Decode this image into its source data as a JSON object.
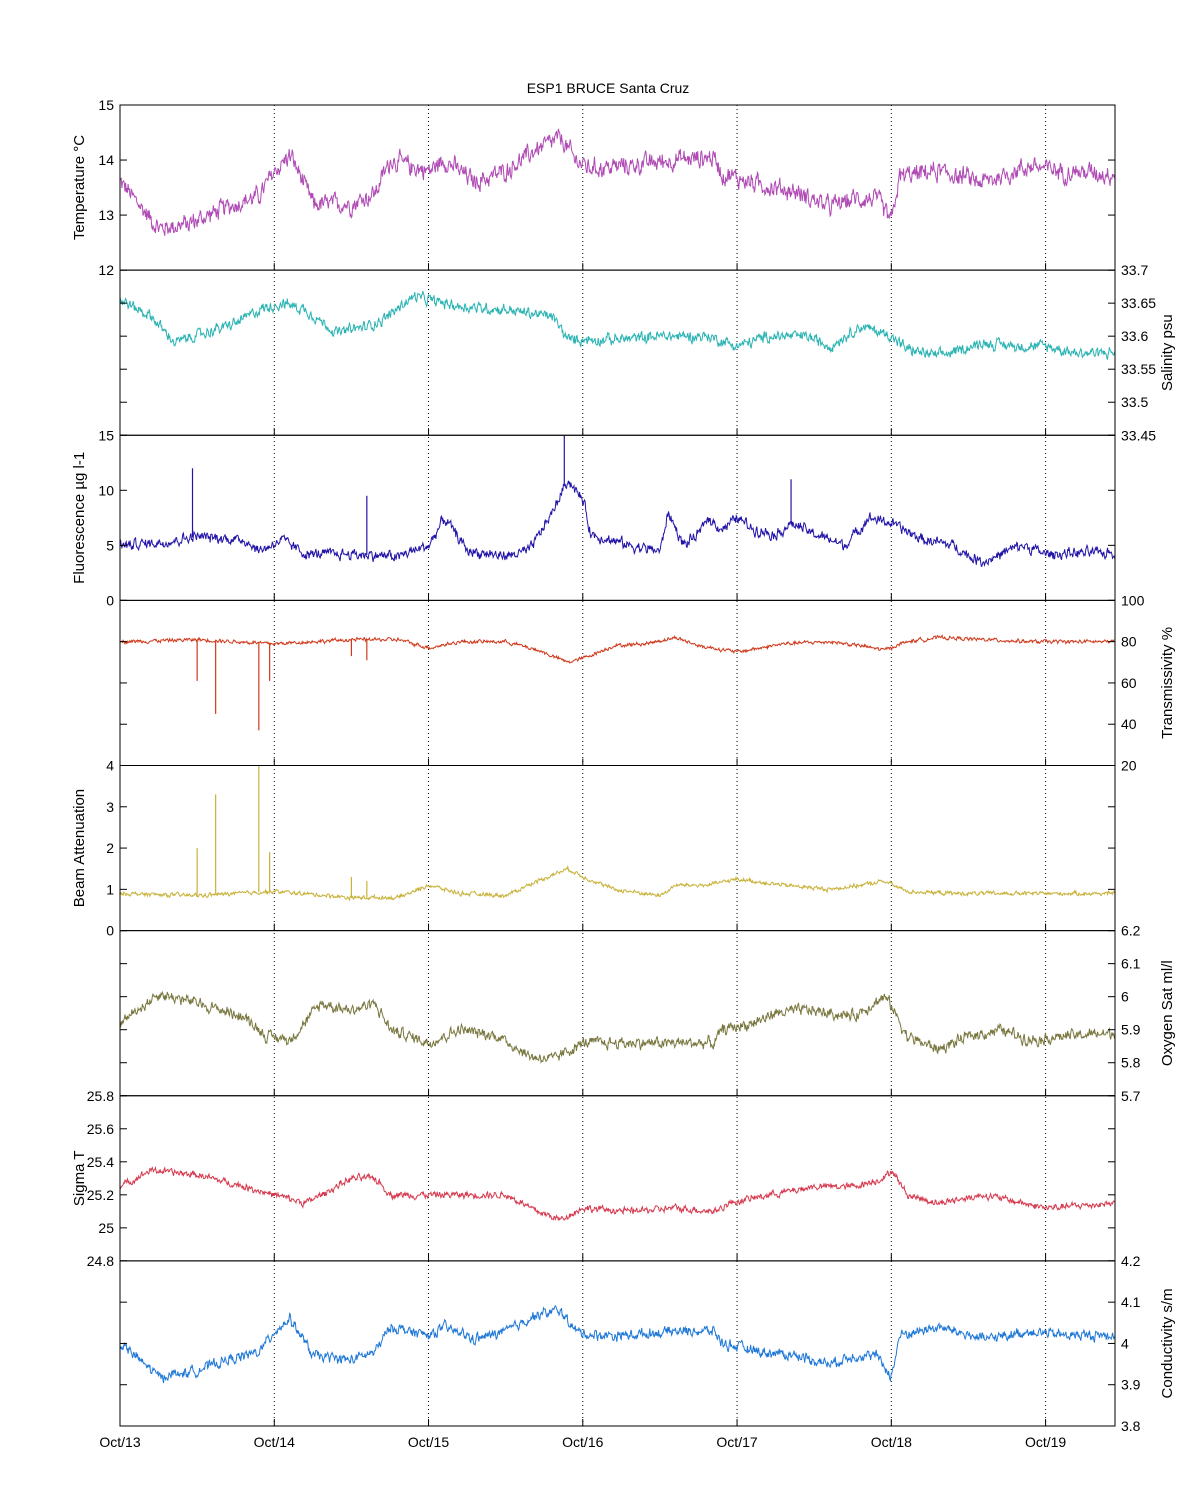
{
  "chart_data": {
    "type": "line",
    "title": "ESP1 BRUCE Santa Cruz",
    "x_ticks": [
      "Oct/13",
      "Oct/14",
      "Oct/15",
      "Oct/16",
      "Oct/17",
      "Oct/18",
      "Oct/19"
    ],
    "xlim_days": [
      0,
      6.45
    ],
    "panels": [
      {
        "id": "temperature",
        "ylabel": "Temperature °C",
        "axis_side": "left",
        "color": "#b04bb5",
        "ylim": [
          12,
          15
        ],
        "tick_labels": [
          "12",
          "13",
          "14",
          "15"
        ],
        "minor_ticks": [],
        "amp": 0.25,
        "spikes": [],
        "trend": [
          [
            0,
            13.6
          ],
          [
            0.25,
            12.75
          ],
          [
            0.45,
            12.85
          ],
          [
            0.7,
            13.15
          ],
          [
            0.9,
            13.35
          ],
          [
            1.0,
            13.8
          ],
          [
            1.1,
            14.1
          ],
          [
            1.25,
            13.2
          ],
          [
            1.5,
            13.2
          ],
          [
            1.65,
            13.4
          ],
          [
            1.75,
            14.0
          ],
          [
            2.0,
            13.8
          ],
          [
            2.1,
            14.0
          ],
          [
            2.3,
            13.6
          ],
          [
            2.5,
            13.8
          ],
          [
            2.7,
            14.2
          ],
          [
            2.85,
            14.4
          ],
          [
            2.95,
            14.0
          ],
          [
            3.05,
            13.85
          ],
          [
            3.3,
            13.9
          ],
          [
            3.6,
            14.0
          ],
          [
            3.85,
            14.05
          ],
          [
            3.9,
            13.75
          ],
          [
            4.15,
            13.55
          ],
          [
            4.4,
            13.4
          ],
          [
            4.6,
            13.15
          ],
          [
            4.75,
            13.3
          ],
          [
            4.9,
            13.3
          ],
          [
            5.0,
            12.9
          ],
          [
            5.05,
            13.7
          ],
          [
            5.3,
            13.8
          ],
          [
            5.6,
            13.6
          ],
          [
            5.9,
            13.9
          ],
          [
            6.1,
            13.8
          ],
          [
            6.45,
            13.75
          ]
        ]
      },
      {
        "id": "salinity",
        "ylabel": "Salinity psu",
        "axis_side": "right",
        "color": "#2ab3b3",
        "ylim": [
          33.45,
          33.7
        ],
        "tick_labels": [
          "33.45",
          "33.5",
          "33.55",
          "33.6",
          "33.65",
          "33.7"
        ],
        "minor_ticks": [],
        "amp": 0.012,
        "spikes": [],
        "trend": [
          [
            0,
            33.655
          ],
          [
            0.2,
            33.63
          ],
          [
            0.35,
            33.59
          ],
          [
            0.55,
            33.605
          ],
          [
            0.75,
            33.62
          ],
          [
            0.9,
            33.64
          ],
          [
            1.05,
            33.65
          ],
          [
            1.2,
            33.64
          ],
          [
            1.4,
            33.605
          ],
          [
            1.6,
            33.615
          ],
          [
            1.7,
            33.625
          ],
          [
            1.9,
            33.66
          ],
          [
            2.0,
            33.655
          ],
          [
            2.2,
            33.645
          ],
          [
            2.5,
            33.64
          ],
          [
            2.8,
            33.63
          ],
          [
            2.9,
            33.595
          ],
          [
            3.2,
            33.595
          ],
          [
            3.5,
            33.6
          ],
          [
            3.8,
            33.6
          ],
          [
            4.0,
            33.585
          ],
          [
            4.2,
            33.6
          ],
          [
            4.45,
            33.6
          ],
          [
            4.6,
            33.585
          ],
          [
            4.8,
            33.615
          ],
          [
            5.0,
            33.6
          ],
          [
            5.1,
            33.58
          ],
          [
            5.3,
            33.57
          ],
          [
            5.6,
            33.59
          ],
          [
            5.8,
            33.585
          ],
          [
            6.0,
            33.585
          ],
          [
            6.2,
            33.575
          ],
          [
            6.45,
            33.575
          ]
        ]
      },
      {
        "id": "fluorescence",
        "ylabel": "Fluorescence µg l-1",
        "axis_side": "left",
        "color": "#2214a8",
        "ylim": [
          0,
          15
        ],
        "tick_labels": [
          "0",
          "5",
          "10",
          "15"
        ],
        "minor_ticks": [],
        "amp": 0.7,
        "spikes": [
          [
            0.47,
            12
          ],
          [
            1.6,
            9.5
          ],
          [
            2.88,
            15
          ],
          [
            4.35,
            11
          ]
        ],
        "trend": [
          [
            0,
            5.0
          ],
          [
            0.3,
            5.3
          ],
          [
            0.5,
            5.8
          ],
          [
            0.8,
            5.5
          ],
          [
            0.9,
            4.5
          ],
          [
            1.05,
            5.5
          ],
          [
            1.2,
            4.2
          ],
          [
            1.5,
            4.2
          ],
          [
            1.8,
            4.0
          ],
          [
            2.0,
            5.0
          ],
          [
            2.1,
            7.5
          ],
          [
            2.25,
            4.5
          ],
          [
            2.5,
            4.0
          ],
          [
            2.65,
            4.5
          ],
          [
            2.8,
            8.0
          ],
          [
            2.9,
            11.0
          ],
          [
            3.0,
            9.0
          ],
          [
            3.05,
            6.0
          ],
          [
            3.3,
            5.0
          ],
          [
            3.5,
            4.5
          ],
          [
            3.55,
            8.0
          ],
          [
            3.65,
            5.0
          ],
          [
            3.75,
            6.0
          ],
          [
            3.8,
            7.5
          ],
          [
            3.9,
            6.5
          ],
          [
            4.0,
            7.5
          ],
          [
            4.1,
            6.5
          ],
          [
            4.25,
            6.0
          ],
          [
            4.35,
            7.0
          ],
          [
            4.5,
            6.0
          ],
          [
            4.7,
            5.0
          ],
          [
            4.85,
            7.5
          ],
          [
            5.0,
            7.0
          ],
          [
            5.2,
            5.5
          ],
          [
            5.4,
            5.0
          ],
          [
            5.5,
            4.0
          ],
          [
            5.6,
            3.5
          ],
          [
            5.75,
            4.5
          ],
          [
            5.85,
            5.0
          ],
          [
            6.0,
            4.2
          ],
          [
            6.2,
            4.3
          ],
          [
            6.45,
            4.3
          ]
        ]
      },
      {
        "id": "transmissivity",
        "ylabel": "Transmissivity %",
        "axis_side": "right",
        "color": "#d0391c",
        "ylim": [
          20,
          100
        ],
        "tick_labels": [
          "20",
          "40",
          "60",
          "80",
          "100"
        ],
        "minor_ticks": [],
        "amp": 1.3,
        "spikes": [
          [
            0.5,
            61
          ],
          [
            0.62,
            45
          ],
          [
            0.9,
            37
          ],
          [
            0.97,
            61
          ],
          [
            1.5,
            73
          ],
          [
            1.6,
            71
          ]
        ],
        "trend": [
          [
            0,
            80
          ],
          [
            0.5,
            81
          ],
          [
            1.0,
            79
          ],
          [
            1.5,
            81
          ],
          [
            1.8,
            81
          ],
          [
            2.0,
            77
          ],
          [
            2.2,
            80
          ],
          [
            2.5,
            80
          ],
          [
            2.7,
            76
          ],
          [
            2.9,
            70
          ],
          [
            3.0,
            72
          ],
          [
            3.2,
            78
          ],
          [
            3.4,
            79
          ],
          [
            3.6,
            82
          ],
          [
            3.75,
            78
          ],
          [
            4.0,
            75
          ],
          [
            4.3,
            79
          ],
          [
            4.6,
            80
          ],
          [
            4.8,
            78
          ],
          [
            4.95,
            76
          ],
          [
            5.1,
            80
          ],
          [
            5.3,
            82
          ],
          [
            5.6,
            81
          ],
          [
            5.9,
            80
          ],
          [
            6.45,
            80
          ]
        ]
      },
      {
        "id": "beam-attenuation",
        "ylabel": "Beam Attenuation",
        "axis_side": "left",
        "color": "#c8b23a",
        "ylim": [
          0,
          4
        ],
        "tick_labels": [
          "0",
          "1",
          "2",
          "3",
          "4"
        ],
        "minor_ticks": [],
        "amp": 0.07,
        "spikes": [
          [
            0.5,
            2.0
          ],
          [
            0.62,
            3.3
          ],
          [
            0.9,
            4.0
          ],
          [
            0.97,
            1.9
          ],
          [
            1.5,
            1.3
          ],
          [
            1.6,
            1.2
          ]
        ],
        "trend": [
          [
            0,
            0.9
          ],
          [
            0.5,
            0.85
          ],
          [
            1.0,
            0.95
          ],
          [
            1.5,
            0.8
          ],
          [
            1.8,
            0.8
          ],
          [
            2.0,
            1.1
          ],
          [
            2.2,
            0.9
          ],
          [
            2.5,
            0.85
          ],
          [
            2.7,
            1.2
          ],
          [
            2.9,
            1.5
          ],
          [
            3.0,
            1.3
          ],
          [
            3.2,
            1.0
          ],
          [
            3.5,
            0.85
          ],
          [
            3.6,
            1.1
          ],
          [
            3.8,
            1.1
          ],
          [
            4.0,
            1.25
          ],
          [
            4.3,
            1.1
          ],
          [
            4.6,
            1.0
          ],
          [
            4.8,
            1.1
          ],
          [
            4.95,
            1.2
          ],
          [
            5.1,
            0.95
          ],
          [
            5.4,
            0.9
          ],
          [
            5.7,
            0.9
          ],
          [
            6.0,
            0.9
          ],
          [
            6.45,
            0.9
          ]
        ]
      },
      {
        "id": "oxygen-sat",
        "ylabel": "Oxygen Sat ml/l",
        "axis_side": "right",
        "color": "#7a7840",
        "ylim": [
          5.7,
          6.2
        ],
        "tick_labels": [
          "5.7",
          "5.8",
          "5.9",
          "6",
          "6.1",
          "6.2"
        ],
        "minor_ticks": [],
        "amp": 0.025,
        "spikes": [],
        "trend": [
          [
            0,
            5.92
          ],
          [
            0.25,
            6.01
          ],
          [
            0.5,
            5.98
          ],
          [
            0.8,
            5.94
          ],
          [
            0.95,
            5.88
          ],
          [
            1.1,
            5.87
          ],
          [
            1.3,
            5.98
          ],
          [
            1.5,
            5.96
          ],
          [
            1.65,
            5.98
          ],
          [
            1.75,
            5.9
          ],
          [
            2.0,
            5.86
          ],
          [
            2.2,
            5.9
          ],
          [
            2.45,
            5.88
          ],
          [
            2.65,
            5.82
          ],
          [
            2.8,
            5.81
          ],
          [
            3.0,
            5.86
          ],
          [
            3.3,
            5.86
          ],
          [
            3.6,
            5.86
          ],
          [
            3.85,
            5.86
          ],
          [
            3.9,
            5.9
          ],
          [
            4.1,
            5.92
          ],
          [
            4.25,
            5.95
          ],
          [
            4.45,
            5.96
          ],
          [
            4.6,
            5.95
          ],
          [
            4.75,
            5.94
          ],
          [
            4.95,
            6.0
          ],
          [
            5.0,
            5.97
          ],
          [
            5.1,
            5.88
          ],
          [
            5.3,
            5.84
          ],
          [
            5.5,
            5.88
          ],
          [
            5.7,
            5.9
          ],
          [
            5.9,
            5.87
          ],
          [
            6.1,
            5.88
          ],
          [
            6.45,
            5.89
          ]
        ]
      },
      {
        "id": "sigma-t",
        "ylabel": "Sigma T",
        "axis_side": "left",
        "color": "#d63a4e",
        "ylim": [
          24.8,
          25.8
        ],
        "tick_labels": [
          "24.8",
          "25",
          "25.2",
          "25.4",
          "25.6",
          "25.8"
        ],
        "minor_ticks": [],
        "amp": 0.03,
        "spikes": [],
        "trend": [
          [
            0,
            25.25
          ],
          [
            0.2,
            25.35
          ],
          [
            0.5,
            25.32
          ],
          [
            0.8,
            25.25
          ],
          [
            1.0,
            25.2
          ],
          [
            1.2,
            25.15
          ],
          [
            1.5,
            25.3
          ],
          [
            1.65,
            25.3
          ],
          [
            1.75,
            25.2
          ],
          [
            2.0,
            25.2
          ],
          [
            2.2,
            25.2
          ],
          [
            2.5,
            25.2
          ],
          [
            2.7,
            25.1
          ],
          [
            2.85,
            25.05
          ],
          [
            3.0,
            25.12
          ],
          [
            3.3,
            25.1
          ],
          [
            3.6,
            25.12
          ],
          [
            3.85,
            25.1
          ],
          [
            3.95,
            25.15
          ],
          [
            4.2,
            25.2
          ],
          [
            4.5,
            25.25
          ],
          [
            4.75,
            25.25
          ],
          [
            4.95,
            25.3
          ],
          [
            5.0,
            25.35
          ],
          [
            5.1,
            25.2
          ],
          [
            5.3,
            25.15
          ],
          [
            5.6,
            25.2
          ],
          [
            5.85,
            25.15
          ],
          [
            6.0,
            25.12
          ],
          [
            6.45,
            25.15
          ]
        ]
      },
      {
        "id": "conductivity",
        "ylabel": "Conductivity s/m",
        "axis_side": "right",
        "color": "#1f78d6",
        "ylim": [
          3.8,
          4.2
        ],
        "tick_labels": [
          "3.8",
          "3.9",
          "4",
          "4.1",
          "4.2"
        ],
        "minor_ticks": [],
        "amp": 0.018,
        "spikes": [],
        "trend": [
          [
            0,
            4.0
          ],
          [
            0.25,
            3.92
          ],
          [
            0.45,
            3.93
          ],
          [
            0.7,
            3.96
          ],
          [
            0.9,
            3.98
          ],
          [
            1.0,
            4.03
          ],
          [
            1.1,
            4.06
          ],
          [
            1.25,
            3.97
          ],
          [
            1.5,
            3.96
          ],
          [
            1.65,
            3.98
          ],
          [
            1.75,
            4.04
          ],
          [
            2.0,
            4.02
          ],
          [
            2.1,
            4.04
          ],
          [
            2.3,
            4.01
          ],
          [
            2.5,
            4.03
          ],
          [
            2.7,
            4.07
          ],
          [
            2.85,
            4.08
          ],
          [
            2.95,
            4.03
          ],
          [
            3.05,
            4.02
          ],
          [
            3.3,
            4.02
          ],
          [
            3.6,
            4.03
          ],
          [
            3.85,
            4.03
          ],
          [
            3.9,
            4.0
          ],
          [
            4.15,
            3.98
          ],
          [
            4.4,
            3.97
          ],
          [
            4.6,
            3.95
          ],
          [
            4.75,
            3.97
          ],
          [
            4.9,
            3.97
          ],
          [
            5.0,
            3.92
          ],
          [
            5.05,
            4.02
          ],
          [
            5.3,
            4.04
          ],
          [
            5.6,
            4.01
          ],
          [
            5.9,
            4.03
          ],
          [
            6.1,
            4.02
          ],
          [
            6.45,
            4.02
          ]
        ]
      }
    ]
  }
}
